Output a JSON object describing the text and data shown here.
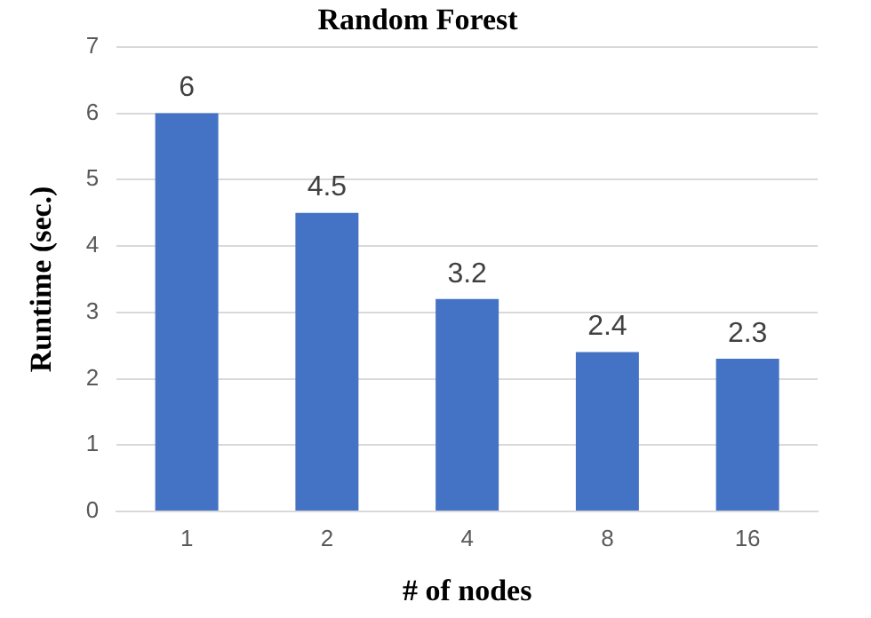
{
  "chart_data": {
    "type": "bar",
    "title": "Random Forest",
    "xlabel": "# of nodes",
    "ylabel": "Runtime (sec.)",
    "categories": [
      "1",
      "2",
      "4",
      "8",
      "16"
    ],
    "values": [
      6,
      4.5,
      3.2,
      2.4,
      2.3
    ],
    "color": "#4472c4",
    "ylim": [
      0,
      7
    ],
    "yticks": [
      0,
      1,
      2,
      3,
      4,
      5,
      6,
      7
    ],
    "grid": "y",
    "data_labels": true
  }
}
